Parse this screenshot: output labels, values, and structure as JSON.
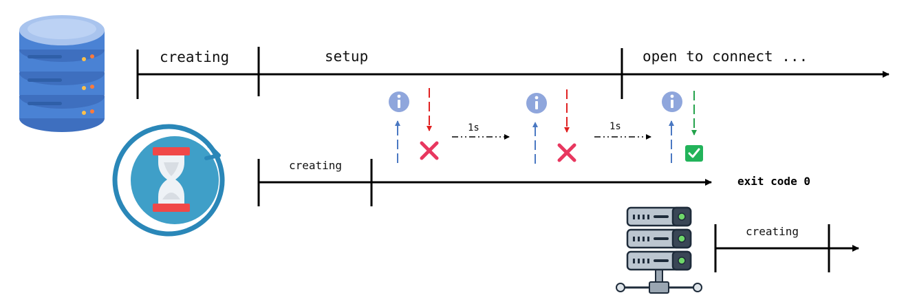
{
  "timeline_db": {
    "phases": [
      "creating",
      "setup",
      "open to connect ..."
    ]
  },
  "timeline_waiter": {
    "phase": "creating",
    "exit_label": "exit code 0",
    "retry_intervals": [
      "1s",
      "1s"
    ],
    "checks": [
      {
        "result": "fail",
        "icon": "cross-icon",
        "color": "#e8375f"
      },
      {
        "result": "fail",
        "icon": "cross-icon",
        "color": "#e8375f"
      },
      {
        "result": "success",
        "icon": "checkmark-icon",
        "color": "#22b35a"
      }
    ]
  },
  "timeline_app": {
    "phase": "creating"
  },
  "icons": {
    "database": "database-icon",
    "waiter": "hourglass-icon",
    "server": "server-rack-icon",
    "info": "info-icon"
  },
  "colors": {
    "request_arrow": "#4a78c2",
    "fail_arrow": "#e02020",
    "success_arrow": "#22a24a",
    "info_circle": "#8fa6dc",
    "db_blue": "#4a82d4",
    "hourglass_ring": "#2a87b8"
  }
}
